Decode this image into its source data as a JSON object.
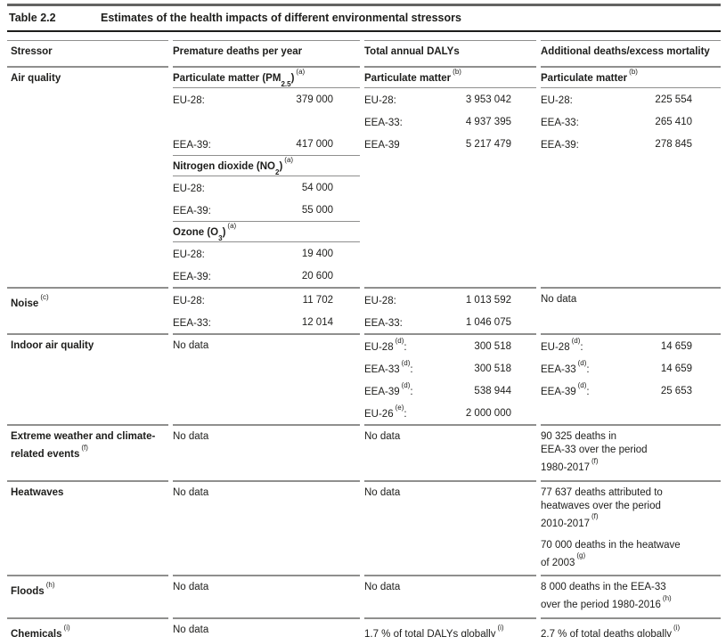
{
  "title": {
    "label": "Table 2.2",
    "caption": "Estimates of the health impacts of different environmental stressors"
  },
  "columns": {
    "stressor": "Stressor",
    "deaths": "Premature deaths per year",
    "dalys": "Total annual DALYs",
    "mortality": "Additional deaths/excess mortality"
  },
  "air": {
    "name": "Air quality",
    "pm": {
      "header": {
        "text": "Particulate matter (PM",
        "sub": "2.5",
        "text2": ")",
        "note": "(a)"
      },
      "rows": [
        {
          "label": "EU-28:",
          "value": "379 000"
        },
        {},
        {
          "label": "EEA-39:",
          "value": "417 000"
        }
      ]
    },
    "no2": {
      "header": {
        "text": "Nitrogen dioxide (NO",
        "sub": "2",
        "text2": ")",
        "note": "(a)"
      },
      "rows": [
        {
          "label": "EU-28:",
          "value": "54 000"
        },
        {
          "label": "EEA-39:",
          "value": "55 000"
        }
      ]
    },
    "o3": {
      "header": {
        "text": "Ozone (O",
        "sub": "3",
        "text2": ")",
        "note": "(a)"
      },
      "rows": [
        {
          "label": "EU-28:",
          "value": "19 400"
        },
        {
          "label": "EEA-39:",
          "value": "20 600"
        }
      ]
    },
    "dalys": {
      "header": {
        "text": "Particulate matter",
        "note": "(b)"
      },
      "rows": [
        {
          "label": "EU-28:",
          "value": "3 953 042"
        },
        {
          "label": "EEA-33:",
          "value": "4 937 395"
        },
        {
          "label": "EEA-39",
          "value": "5 217 479"
        }
      ]
    },
    "mortality": {
      "header": {
        "text": "Particulate matter",
        "note": "(b)"
      },
      "rows": [
        {
          "label": "EU-28:",
          "value": "225 554"
        },
        {
          "label": "EEA-33:",
          "value": "265 410"
        },
        {
          "label": "EEA-39:",
          "value": "278 845"
        }
      ]
    }
  },
  "noise": {
    "name": "Noise",
    "name_note": "(c)",
    "deaths_rows": [
      {
        "label": "EU-28:",
        "value": "11 702"
      },
      {
        "label": "EEA-33:",
        "value": "12 014"
      }
    ],
    "dalys_rows": [
      {
        "label": "EU-28:",
        "value": "1 013 592"
      },
      {
        "label": "EEA-33:",
        "value": "1 046 075"
      }
    ],
    "mortality": "No data"
  },
  "indoor": {
    "name": "Indoor air quality",
    "deaths": "No data",
    "dalys_rows": [
      {
        "label": "EU-28",
        "note": "(d)",
        "colon": ":",
        "value": "300 518"
      },
      {
        "label": "EEA-33",
        "note": "(d)",
        "colon": ":",
        "value": "300 518"
      },
      {
        "label": "EEA-39",
        "note": "(d)",
        "colon": ":",
        "value": "538 944"
      },
      {
        "label": "EU-26",
        "note": "(e)",
        "colon": ":",
        "value": "2 000 000"
      }
    ],
    "mortality_rows": [
      {
        "label": "EU-28",
        "note": "(d)",
        "colon": ":",
        "value": "14 659"
      },
      {
        "label": "EEA-33",
        "note": "(d)",
        "colon": ":",
        "value": "14 659"
      },
      {
        "label": "EEA-39",
        "note": "(d)",
        "colon": ":",
        "value": "25 653"
      }
    ]
  },
  "extreme": {
    "name": "Extreme weather and climate-related events",
    "name_note": "(f)",
    "deaths": "No data",
    "dalys": "No data",
    "mortality": {
      "text": "90 325 deaths in\nEEA-33 over the period\n1980-2017",
      "note": "(f)"
    }
  },
  "heatwaves": {
    "name": "Heatwaves",
    "deaths": "No data",
    "dalys": "No data",
    "mortality_p1": {
      "text": "77 637 deaths attributed to\nheatwaves over the period\n2010-2017",
      "note": "(f)"
    },
    "mortality_p2": {
      "text": "70 000 deaths in the heatwave\nof 2003",
      "note": "(g)"
    }
  },
  "floods": {
    "name": "Floods",
    "name_note": "(h)",
    "deaths": "No data",
    "dalys": "No data",
    "mortality": {
      "text": "8 000 deaths in the EEA-33\nover the period 1980-2016",
      "note": "(h)"
    }
  },
  "chemicals": {
    "name": "Chemicals",
    "name_note": "(i)",
    "deaths": "No data",
    "dalys": {
      "text": "1.7 % of total DALYs globally",
      "note": "(i)"
    },
    "mortality": {
      "text": "2.7 % of total deaths globally",
      "note": "(i)"
    }
  }
}
